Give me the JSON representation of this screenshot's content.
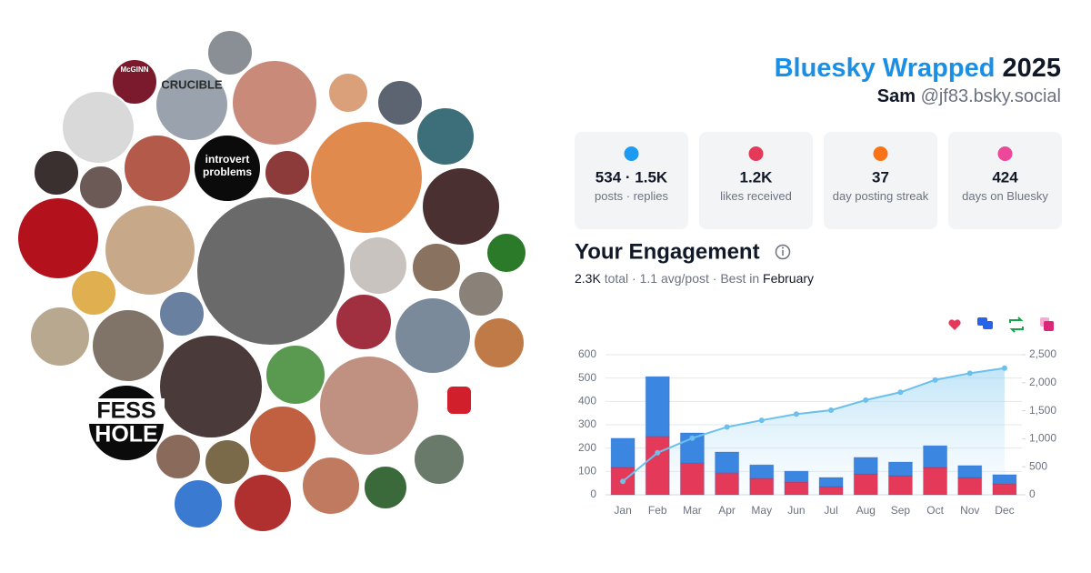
{
  "header": {
    "brand": "Bluesky Wrapped",
    "year": "2025",
    "name": "Sam",
    "handle": "@jf83.bsky.social"
  },
  "stats": [
    {
      "value": "534 · 1.5K",
      "label": "posts · replies"
    },
    {
      "value": "1.2K",
      "label": "likes received"
    },
    {
      "value": "37",
      "label": "day posting streak"
    },
    {
      "value": "424",
      "label": "days on Bluesky"
    }
  ],
  "collage": {
    "labels": [
      "McGINN",
      "CRUCIBLE",
      "introvert problems",
      "FESS",
      "HOLE"
    ]
  },
  "engagement": {
    "title": "Your Engagement",
    "total": "2.3K",
    "summary": "total · 1.1 avg/post · Best in",
    "best": "February"
  },
  "chart_data": {
    "type": "bar",
    "stacked": true,
    "grid": true,
    "categories": [
      "Jan",
      "Feb",
      "Mar",
      "Apr",
      "May",
      "Jun",
      "Jul",
      "Aug",
      "Sep",
      "Oct",
      "Nov",
      "Dec"
    ],
    "series": [
      {
        "color": "#e5395a",
        "values": [
          117,
          249,
          136,
          93,
          70,
          55,
          35,
          90,
          82,
          117,
          74,
          47
        ]
      },
      {
        "color": "#3b86e0",
        "values": [
          125,
          257,
          129,
          90,
          58,
          46,
          39,
          70,
          58,
          93,
          51,
          39
        ]
      },
      {
        "type": "line",
        "axis": "y2",
        "color": "#6cc0ec",
        "values": [
          240,
          750,
          1010,
          1210,
          1330,
          1440,
          1510,
          1690,
          1830,
          2050,
          2170,
          2260
        ]
      }
    ],
    "ylim": [
      0,
      600
    ],
    "yticks": [
      0,
      100,
      200,
      300,
      400,
      500,
      600
    ],
    "y2lim": [
      0,
      2500
    ],
    "y2ticks": [
      0,
      500,
      {
        "value": 1000,
        "label": "1,000"
      },
      {
        "value": 1500,
        "label": "1,500"
      },
      {
        "value": 2000,
        "label": "2,000"
      },
      {
        "value": 2500,
        "label": "2,500"
      }
    ]
  }
}
